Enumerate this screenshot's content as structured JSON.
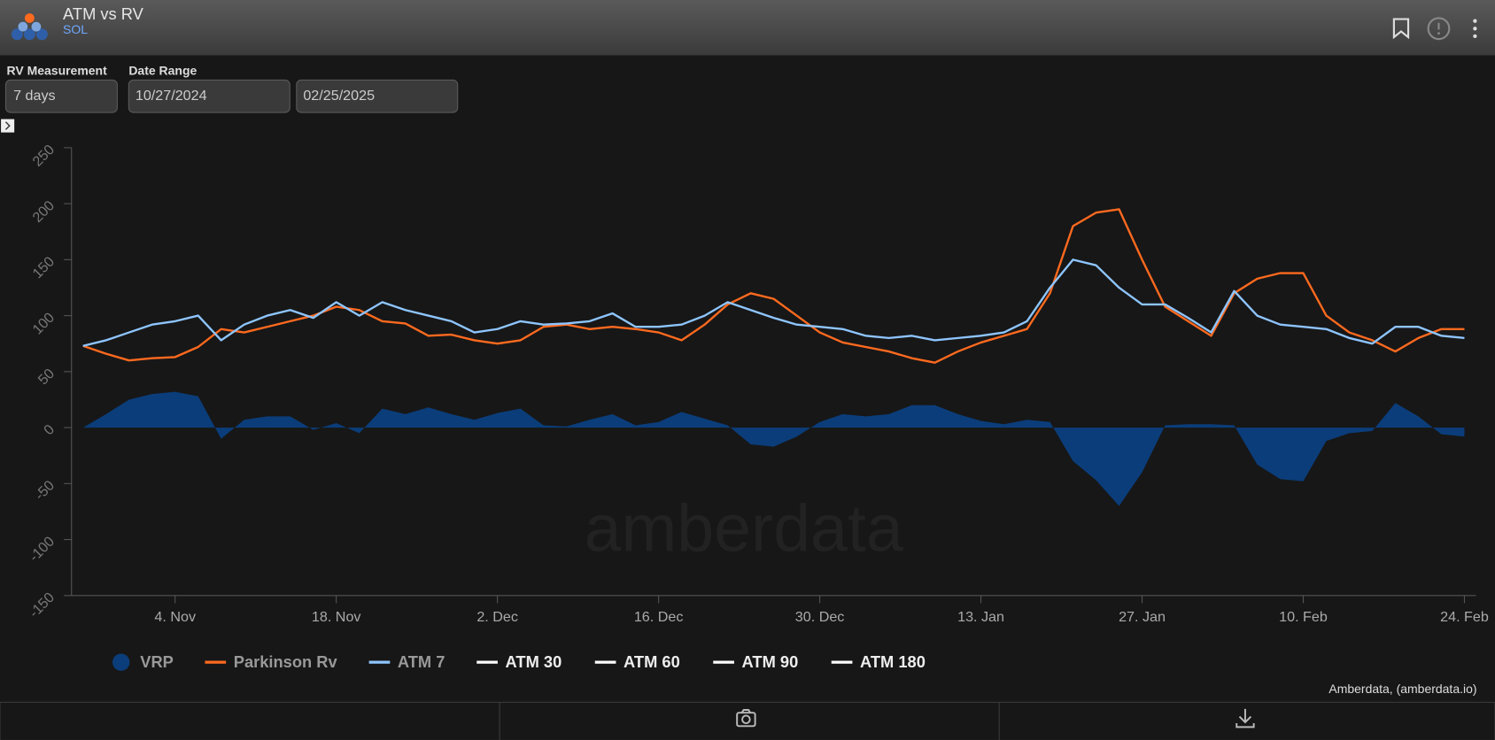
{
  "header": {
    "title": "ATM vs RV",
    "subtitle": "SOL"
  },
  "controls": {
    "rv_label": "RV Measurement",
    "rv_value": "7 days",
    "range_label": "Date Range",
    "start": "10/27/2024",
    "end": "02/25/2025"
  },
  "credit": "Amberdata, (amberdata.io)",
  "watermark": "amberdata",
  "chart_data": {
    "type": "line",
    "x": [
      "2024-10-27",
      "2024-10-29",
      "2024-10-31",
      "2024-11-02",
      "2024-11-04",
      "2024-11-06",
      "2024-11-08",
      "2024-11-10",
      "2024-11-12",
      "2024-11-14",
      "2024-11-16",
      "2024-11-18",
      "2024-11-20",
      "2024-11-22",
      "2024-11-24",
      "2024-11-26",
      "2024-11-28",
      "2024-11-30",
      "2024-12-02",
      "2024-12-04",
      "2024-12-06",
      "2024-12-08",
      "2024-12-10",
      "2024-12-12",
      "2024-12-14",
      "2024-12-16",
      "2024-12-18",
      "2024-12-20",
      "2024-12-22",
      "2024-12-24",
      "2024-12-26",
      "2024-12-28",
      "2024-12-30",
      "2025-01-01",
      "2025-01-03",
      "2025-01-05",
      "2025-01-07",
      "2025-01-09",
      "2025-01-11",
      "2025-01-13",
      "2025-01-15",
      "2025-01-17",
      "2025-01-19",
      "2025-01-21",
      "2025-01-23",
      "2025-01-25",
      "2025-01-27",
      "2025-01-29",
      "2025-01-31",
      "2025-02-02",
      "2025-02-04",
      "2025-02-06",
      "2025-02-08",
      "2025-02-10",
      "2025-02-12",
      "2025-02-14",
      "2025-02-16",
      "2025-02-18",
      "2025-02-20",
      "2025-02-22",
      "2025-02-24"
    ],
    "series": [
      {
        "name": "VRP",
        "kind": "area",
        "color": "#0b3d7a",
        "visible": true,
        "values": [
          0,
          12,
          25,
          30,
          32,
          28,
          -10,
          7,
          10,
          10,
          -2,
          4,
          -5,
          17,
          12,
          18,
          12,
          7,
          13,
          17,
          2,
          1,
          7,
          12,
          2,
          5,
          14,
          8,
          2,
          -15,
          -17,
          -8,
          5,
          12,
          10,
          12,
          20,
          20,
          12,
          6,
          3,
          7,
          5,
          -30,
          -47,
          -70,
          -40,
          2,
          3,
          3,
          2,
          -33,
          -46,
          -48,
          -12,
          -5,
          -3,
          22,
          10,
          -6,
          -8
        ]
      },
      {
        "name": "Parkinson Rv",
        "kind": "line",
        "color": "#ff6a1f",
        "visible": true,
        "values": [
          73,
          66,
          60,
          62,
          63,
          72,
          88,
          85,
          90,
          95,
          100,
          108,
          105,
          95,
          93,
          82,
          83,
          78,
          75,
          78,
          90,
          92,
          88,
          90,
          88,
          85,
          78,
          92,
          110,
          120,
          115,
          100,
          85,
          76,
          72,
          68,
          62,
          58,
          68,
          76,
          82,
          88,
          120,
          180,
          192,
          195,
          150,
          108,
          95,
          82,
          120,
          133,
          138,
          138,
          100,
          85,
          78,
          68,
          80,
          88,
          88
        ]
      },
      {
        "name": "ATM 7",
        "kind": "line",
        "color": "#8ec5ff",
        "visible": true,
        "values": [
          73,
          78,
          85,
          92,
          95,
          100,
          78,
          92,
          100,
          105,
          98,
          112,
          100,
          112,
          105,
          100,
          95,
          85,
          88,
          95,
          92,
          93,
          95,
          102,
          90,
          90,
          92,
          100,
          112,
          105,
          98,
          92,
          90,
          88,
          82,
          80,
          82,
          78,
          80,
          82,
          85,
          95,
          125,
          150,
          145,
          125,
          110,
          110,
          98,
          85,
          122,
          100,
          92,
          90,
          88,
          80,
          75,
          90,
          90,
          82,
          80
        ]
      },
      {
        "name": "ATM 30",
        "kind": "line",
        "color": "#ffffff",
        "visible": false
      },
      {
        "name": "ATM 60",
        "kind": "line",
        "color": "#ffffff",
        "visible": false
      },
      {
        "name": "ATM 90",
        "kind": "line",
        "color": "#ffffff",
        "visible": false
      },
      {
        "name": "ATM 180",
        "kind": "line",
        "color": "#ffffff",
        "visible": false
      }
    ],
    "xlim": [
      "2024-10-26",
      "2025-02-25"
    ],
    "xticks": [
      {
        "value": "2024-11-04",
        "label": "4. Nov"
      },
      {
        "value": "2024-11-18",
        "label": "18. Nov"
      },
      {
        "value": "2024-12-02",
        "label": "2. Dec"
      },
      {
        "value": "2024-12-16",
        "label": "16. Dec"
      },
      {
        "value": "2024-12-30",
        "label": "30. Dec"
      },
      {
        "value": "2025-01-13",
        "label": "13. Jan"
      },
      {
        "value": "2025-01-27",
        "label": "27. Jan"
      },
      {
        "value": "2025-02-10",
        "label": "10. Feb"
      },
      {
        "value": "2025-02-24",
        "label": "24. Feb"
      }
    ],
    "ylim": [
      -150,
      250
    ],
    "yticks": [
      -150,
      -100,
      -50,
      0,
      50,
      100,
      150,
      200,
      250
    ]
  }
}
